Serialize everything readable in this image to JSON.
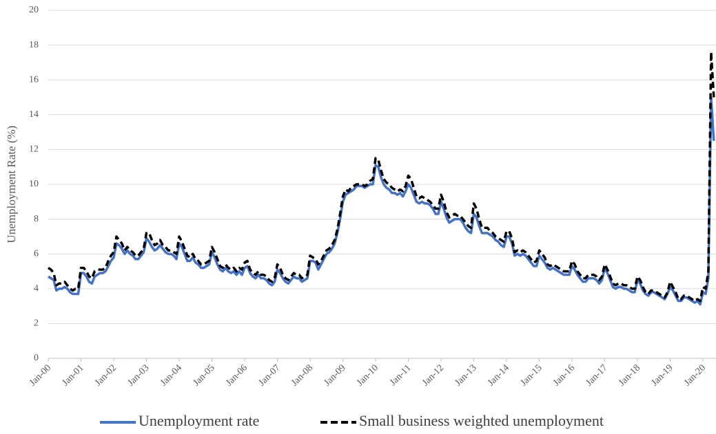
{
  "chart_data": {
    "type": "line",
    "ylabel": "Unemployment Rate (%)",
    "ylim": [
      0,
      20
    ],
    "yticks": [
      0,
      2,
      4,
      6,
      8,
      10,
      12,
      14,
      16,
      18,
      20
    ],
    "grid": true,
    "legend": "bottom",
    "categories": [
      "Jan-00",
      null,
      null,
      null,
      null,
      null,
      null,
      null,
      null,
      null,
      null,
      null,
      "Jan-01",
      null,
      null,
      null,
      null,
      null,
      null,
      null,
      null,
      null,
      null,
      null,
      "Jan-02",
      null,
      null,
      null,
      null,
      null,
      null,
      null,
      null,
      null,
      null,
      null,
      "Jan-03",
      null,
      null,
      null,
      null,
      null,
      null,
      null,
      null,
      null,
      null,
      null,
      "Jan-04",
      null,
      null,
      null,
      null,
      null,
      null,
      null,
      null,
      null,
      null,
      null,
      "Jan-05",
      null,
      null,
      null,
      null,
      null,
      null,
      null,
      null,
      null,
      null,
      null,
      "Jan-06",
      null,
      null,
      null,
      null,
      null,
      null,
      null,
      null,
      null,
      null,
      null,
      "Jan-07",
      null,
      null,
      null,
      null,
      null,
      null,
      null,
      null,
      null,
      null,
      null,
      "Jan-08",
      null,
      null,
      null,
      null,
      null,
      null,
      null,
      null,
      null,
      null,
      null,
      "Jan-09",
      null,
      null,
      null,
      null,
      null,
      null,
      null,
      null,
      null,
      null,
      null,
      "Jan-10",
      null,
      null,
      null,
      null,
      null,
      null,
      null,
      null,
      null,
      null,
      null,
      "Jan-11",
      null,
      null,
      null,
      null,
      null,
      null,
      null,
      null,
      null,
      null,
      null,
      "Jan-12",
      null,
      null,
      null,
      null,
      null,
      null,
      null,
      null,
      null,
      null,
      null,
      "Jan-13",
      null,
      null,
      null,
      null,
      null,
      null,
      null,
      null,
      null,
      null,
      null,
      "Jan-14",
      null,
      null,
      null,
      null,
      null,
      null,
      null,
      null,
      null,
      null,
      null,
      "Jan-15",
      null,
      null,
      null,
      null,
      null,
      null,
      null,
      null,
      null,
      null,
      null,
      "Jan-16",
      null,
      null,
      null,
      null,
      null,
      null,
      null,
      null,
      null,
      null,
      null,
      "Jan-17",
      null,
      null,
      null,
      null,
      null,
      null,
      null,
      null,
      null,
      null,
      null,
      "Jan-18",
      null,
      null,
      null,
      null,
      null,
      null,
      null,
      null,
      null,
      null,
      null,
      "Jan-19",
      null,
      null,
      null,
      null,
      null,
      null,
      null,
      null,
      null,
      null,
      null,
      "Jan-20",
      null,
      null,
      null,
      null
    ],
    "series": [
      {
        "name": "Unemployment rate",
        "color": "#4472c4",
        "dash": false,
        "values": [
          4.7,
          4.6,
          4.5,
          3.9,
          4.0,
          4.0,
          4.1,
          4.0,
          3.8,
          3.7,
          3.7,
          3.7,
          4.9,
          4.9,
          4.7,
          4.4,
          4.3,
          4.7,
          4.8,
          4.9,
          4.9,
          5.0,
          5.3,
          5.6,
          5.8,
          6.6,
          6.5,
          6.3,
          6.0,
          6.2,
          6.0,
          5.9,
          5.7,
          5.7,
          5.9,
          6.1,
          6.9,
          6.7,
          6.4,
          6.2,
          6.3,
          6.5,
          6.3,
          6.1,
          6.0,
          6.0,
          5.9,
          5.7,
          6.6,
          6.4,
          6.0,
          5.6,
          5.6,
          5.8,
          5.5,
          5.4,
          5.2,
          5.2,
          5.3,
          5.4,
          6.1,
          5.8,
          5.4,
          5.1,
          5.0,
          5.2,
          5.0,
          4.9,
          5.0,
          4.8,
          5.0,
          4.8,
          5.2,
          5.3,
          4.9,
          4.7,
          4.6,
          4.8,
          4.6,
          4.6,
          4.5,
          4.3,
          4.2,
          4.4,
          5.1,
          4.9,
          4.6,
          4.4,
          4.3,
          4.5,
          4.7,
          4.6,
          4.6,
          4.4,
          4.5,
          4.6,
          5.6,
          5.6,
          5.5,
          5.1,
          5.4,
          5.7,
          6.0,
          6.1,
          6.3,
          6.6,
          7.2,
          8.0,
          9.0,
          9.4,
          9.5,
          9.6,
          9.7,
          9.9,
          9.9,
          9.9,
          9.8,
          9.9,
          10.0,
          10.0,
          11.1,
          11.0,
          10.4,
          10.0,
          9.8,
          9.7,
          9.5,
          9.5,
          9.4,
          9.5,
          9.3,
          9.6,
          10.0,
          9.8,
          9.4,
          9.0,
          8.9,
          9.0,
          8.9,
          8.9,
          8.8,
          8.6,
          8.3,
          8.3,
          9.0,
          8.6,
          8.1,
          7.8,
          7.9,
          8.0,
          8.0,
          8.0,
          7.8,
          7.5,
          7.3,
          7.2,
          8.3,
          8.1,
          7.6,
          7.2,
          7.2,
          7.2,
          7.1,
          7.0,
          6.8,
          6.7,
          6.5,
          6.4,
          7.0,
          7.0,
          6.6,
          5.9,
          6.0,
          5.9,
          6.0,
          5.9,
          5.7,
          5.5,
          5.3,
          5.3,
          5.9,
          5.7,
          5.5,
          5.2,
          5.1,
          5.2,
          5.1,
          5.0,
          4.9,
          4.8,
          4.8,
          4.8,
          5.3,
          5.1,
          4.8,
          4.6,
          4.4,
          4.4,
          4.6,
          4.6,
          4.6,
          4.5,
          4.3,
          4.5,
          5.2,
          4.9,
          4.5,
          4.1,
          4.0,
          4.1,
          4.1,
          4.0,
          4.0,
          3.9,
          3.8,
          3.8,
          4.5,
          4.3,
          3.9,
          3.7,
          3.6,
          3.8,
          3.8,
          3.7,
          3.6,
          3.5,
          3.4,
          3.7,
          4.1,
          3.9,
          3.6,
          3.3,
          3.3,
          3.5,
          3.5,
          3.4,
          3.3,
          3.2,
          3.3,
          3.1,
          3.8,
          3.7,
          4.6,
          15.0,
          12.5
        ]
      },
      {
        "name": "Small business weighted unemployment",
        "color": "#000000",
        "dash": true,
        "values": [
          5.2,
          5.1,
          4.9,
          4.2,
          4.3,
          4.3,
          4.4,
          4.2,
          4.0,
          3.9,
          4.0,
          4.0,
          5.2,
          5.2,
          5.0,
          4.7,
          4.6,
          5.0,
          5.1,
          5.1,
          5.1,
          5.2,
          5.6,
          5.9,
          6.1,
          7.0,
          6.8,
          6.6,
          6.2,
          6.4,
          6.2,
          6.1,
          5.9,
          5.9,
          6.1,
          6.3,
          7.2,
          7.2,
          6.8,
          6.5,
          6.6,
          6.8,
          6.5,
          6.4,
          6.2,
          6.2,
          6.1,
          6.0,
          7.0,
          6.7,
          6.3,
          5.9,
          5.8,
          6.0,
          5.7,
          5.6,
          5.4,
          5.4,
          5.5,
          5.6,
          6.4,
          6.1,
          5.7,
          5.3,
          5.2,
          5.4,
          5.2,
          5.1,
          5.2,
          5.0,
          5.2,
          5.1,
          5.5,
          5.6,
          5.1,
          4.9,
          4.8,
          5.0,
          4.8,
          4.8,
          4.7,
          4.5,
          4.4,
          4.6,
          5.4,
          5.2,
          4.8,
          4.6,
          4.5,
          4.7,
          4.9,
          4.8,
          4.8,
          4.6,
          4.7,
          4.8,
          5.9,
          5.8,
          5.7,
          5.4,
          5.6,
          5.9,
          6.2,
          6.3,
          6.5,
          6.8,
          7.4,
          8.3,
          9.3,
          9.7,
          9.6,
          9.8,
          9.9,
          10.0,
          10.0,
          10.0,
          9.9,
          10.0,
          10.2,
          10.3,
          11.5,
          11.4,
          10.8,
          10.3,
          10.1,
          10.0,
          9.8,
          9.7,
          9.6,
          9.7,
          9.6,
          9.9,
          10.5,
          10.3,
          9.8,
          9.3,
          9.2,
          9.3,
          9.2,
          9.1,
          9.0,
          8.8,
          8.6,
          8.6,
          9.4,
          9.0,
          8.4,
          8.1,
          8.2,
          8.3,
          8.2,
          8.2,
          8.0,
          7.8,
          7.6,
          7.5,
          8.9,
          8.6,
          8.0,
          7.5,
          7.5,
          7.5,
          7.3,
          7.2,
          7.0,
          6.9,
          6.8,
          6.7,
          7.3,
          7.3,
          6.9,
          6.1,
          6.2,
          6.1,
          6.2,
          6.1,
          5.9,
          5.7,
          5.5,
          5.6,
          6.2,
          6.0,
          5.8,
          5.4,
          5.3,
          5.4,
          5.3,
          5.2,
          5.1,
          5.0,
          5.0,
          5.0,
          5.6,
          5.4,
          5.0,
          4.8,
          4.6,
          4.6,
          4.8,
          4.8,
          4.8,
          4.7,
          4.5,
          4.7,
          5.4,
          5.1,
          4.7,
          4.3,
          4.2,
          4.3,
          4.3,
          4.2,
          4.2,
          4.1,
          4.0,
          4.0,
          4.7,
          4.5,
          4.1,
          3.8,
          3.7,
          3.9,
          3.9,
          3.8,
          3.7,
          3.6,
          3.5,
          3.8,
          4.4,
          4.1,
          3.8,
          3.4,
          3.4,
          3.6,
          3.6,
          3.5,
          3.4,
          3.3,
          3.4,
          3.3,
          4.1,
          4.0,
          5.0,
          17.6,
          15.0
        ]
      }
    ]
  }
}
